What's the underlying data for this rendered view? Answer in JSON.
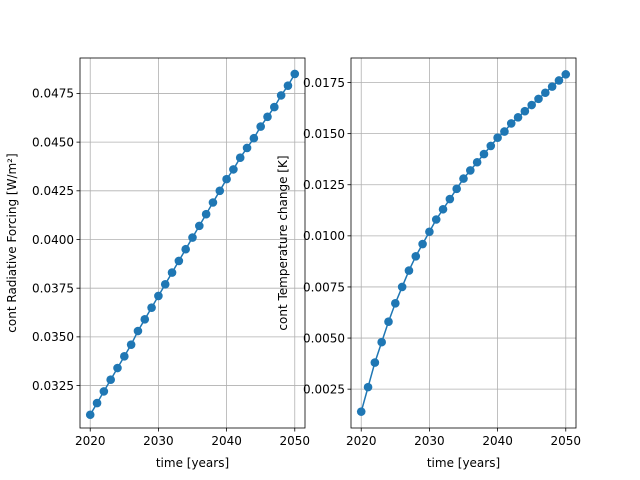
{
  "chart_data": [
    {
      "type": "line",
      "marker": "circle",
      "color": "#1f77b4",
      "grid": true,
      "xlabel": "time [years]",
      "ylabel": "cont Radiative Forcing [W/m²]",
      "xlim": [
        2018.5,
        2051.5
      ],
      "ylim": [
        0.03032,
        0.04932
      ],
      "xticks": [
        2020,
        2030,
        2040,
        2050
      ],
      "xtick_labels": [
        "2020",
        "2030",
        "2040",
        "2050"
      ],
      "yticks": [
        0.0325,
        0.035,
        0.0375,
        0.04,
        0.0425,
        0.045,
        0.0475
      ],
      "ytick_labels": [
        "0.0325",
        "0.0350",
        "0.0375",
        "0.0400",
        "0.0425",
        "0.0450",
        "0.0475"
      ],
      "series": [
        {
          "x": [
            2020,
            2021,
            2022,
            2023,
            2024,
            2025,
            2026,
            2027,
            2028,
            2029,
            2030,
            2031,
            2032,
            2033,
            2034,
            2035,
            2036,
            2037,
            2038,
            2039,
            2040,
            2041,
            2042,
            2043,
            2044,
            2045,
            2046,
            2047,
            2048,
            2049,
            2050
          ],
          "values": [
            0.031,
            0.0316,
            0.0322,
            0.0328,
            0.0334,
            0.034,
            0.0346,
            0.0353,
            0.0359,
            0.0365,
            0.0371,
            0.0377,
            0.0383,
            0.0389,
            0.0395,
            0.0401,
            0.0407,
            0.0413,
            0.0419,
            0.0425,
            0.0431,
            0.0436,
            0.0442,
            0.0447,
            0.0452,
            0.0458,
            0.0463,
            0.0468,
            0.0474,
            0.0479,
            0.0485
          ]
        }
      ]
    },
    {
      "type": "line",
      "marker": "circle",
      "color": "#1f77b4",
      "grid": true,
      "xlabel": "time [years]",
      "ylabel": "cont Temperature change [K]",
      "xlim": [
        2018.5,
        2051.5
      ],
      "ylim": [
        0.0006,
        0.0187
      ],
      "xticks": [
        2020,
        2030,
        2040,
        2050
      ],
      "xtick_labels": [
        "2020",
        "2030",
        "2040",
        "2050"
      ],
      "yticks": [
        0.0025,
        0.005,
        0.0075,
        0.01,
        0.0125,
        0.015,
        0.0175
      ],
      "ytick_labels": [
        "0.0025",
        "0.0050",
        "0.0075",
        "0.0100",
        "0.0125",
        "0.0150",
        "0.0175"
      ],
      "series": [
        {
          "x": [
            2020,
            2021,
            2022,
            2023,
            2024,
            2025,
            2026,
            2027,
            2028,
            2029,
            2030,
            2031,
            2032,
            2033,
            2034,
            2035,
            2036,
            2037,
            2038,
            2039,
            2040,
            2041,
            2042,
            2043,
            2044,
            2045,
            2046,
            2047,
            2048,
            2049,
            2050
          ],
          "values": [
            0.0014,
            0.0026,
            0.0038,
            0.0048,
            0.0058,
            0.0067,
            0.0075,
            0.0083,
            0.009,
            0.0096,
            0.0102,
            0.0108,
            0.0113,
            0.0118,
            0.0123,
            0.0128,
            0.0132,
            0.0136,
            0.014,
            0.0144,
            0.0148,
            0.0151,
            0.0155,
            0.0158,
            0.0161,
            0.0164,
            0.0167,
            0.017,
            0.0173,
            0.0176,
            0.0179
          ]
        }
      ]
    }
  ]
}
